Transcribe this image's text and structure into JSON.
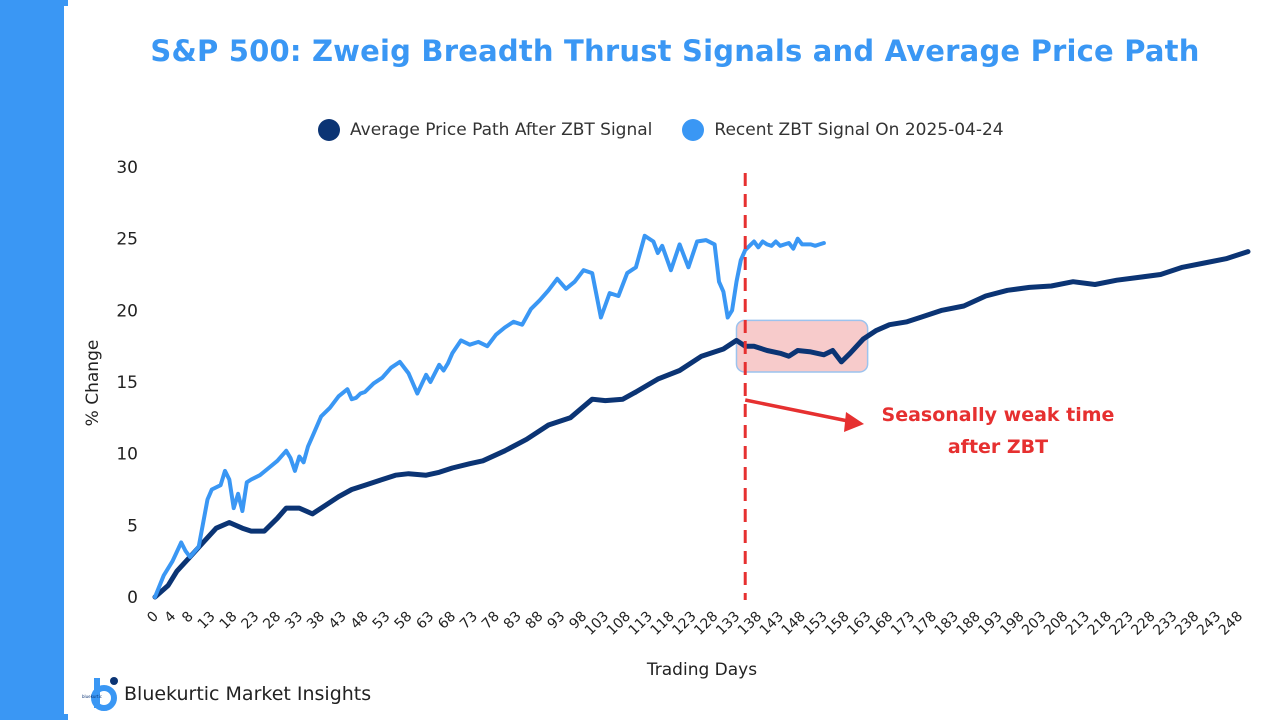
{
  "title": "S&P 500: Zweig Breadth Thrust Signals and Average Price Path",
  "brand": {
    "name": "Bluekurtic Market Insights",
    "mark_text": "bluekurtic"
  },
  "chart_data": {
    "type": "line",
    "title": "S&P 500: Zweig Breadth Thrust Signals and Average Price Path",
    "xlabel": "Trading Days",
    "ylabel": "% Change",
    "xlim": [
      0,
      250
    ],
    "ylim": [
      0,
      30
    ],
    "yticks": [
      0,
      5,
      10,
      15,
      20,
      25,
      30
    ],
    "xticks": [
      0,
      4,
      8,
      13,
      18,
      23,
      28,
      33,
      38,
      43,
      48,
      53,
      58,
      63,
      68,
      73,
      78,
      83,
      88,
      93,
      98,
      103,
      108,
      113,
      118,
      123,
      128,
      133,
      138,
      143,
      148,
      153,
      158,
      163,
      168,
      173,
      178,
      183,
      188,
      193,
      198,
      203,
      208,
      213,
      218,
      223,
      228,
      233,
      238,
      243,
      248
    ],
    "legend_position": "top-center",
    "grid": false,
    "series": [
      {
        "name": "Average Price Path After ZBT Signal",
        "color": "#0b3474",
        "x": [
          0,
          3,
          5,
          8,
          11,
          14,
          17,
          20,
          22,
          25,
          28,
          30,
          33,
          36,
          39,
          42,
          45,
          48,
          52,
          55,
          58,
          62,
          65,
          68,
          72,
          75,
          80,
          85,
          90,
          95,
          100,
          103,
          107,
          110,
          115,
          120,
          125,
          130,
          133,
          135,
          137,
          140,
          143,
          145,
          147,
          150,
          153,
          155,
          157,
          159,
          162,
          165,
          168,
          172,
          175,
          180,
          185,
          190,
          195,
          200,
          205,
          210,
          215,
          220,
          225,
          230,
          235,
          240,
          245,
          250
        ],
        "y": [
          0,
          0.8,
          1.8,
          2.8,
          3.8,
          4.8,
          5.2,
          4.8,
          4.6,
          4.6,
          5.5,
          6.2,
          6.2,
          5.8,
          6.4,
          7,
          7.5,
          7.8,
          8.2,
          8.5,
          8.6,
          8.5,
          8.7,
          9,
          9.3,
          9.5,
          10.2,
          11,
          12,
          12.5,
          13.8,
          13.7,
          13.8,
          14.3,
          15.2,
          15.8,
          16.8,
          17.3,
          17.9,
          17.5,
          17.5,
          17.2,
          17.0,
          16.8,
          17.2,
          17.1,
          16.9,
          17.2,
          16.4,
          17.0,
          18.0,
          18.6,
          19.0,
          19.2,
          19.5,
          20.0,
          20.3,
          21.0,
          21.4,
          21.6,
          21.7,
          22.0,
          21.8,
          22.1,
          22.3,
          22.5,
          23.0,
          23.3,
          23.6,
          24.1
        ]
      },
      {
        "name": "Recent ZBT Signal On 2025-04-24",
        "color": "#3a97f4",
        "x": [
          0,
          2,
          4,
          6,
          7,
          8,
          10,
          12,
          13,
          15,
          16,
          17,
          18,
          19,
          20,
          21,
          22,
          24,
          26,
          28,
          30,
          31,
          32,
          33,
          34,
          35,
          36,
          38,
          40,
          42,
          44,
          45,
          46,
          47,
          48,
          50,
          52,
          54,
          56,
          58,
          60,
          62,
          63,
          65,
          66,
          67,
          68,
          70,
          72,
          74,
          76,
          78,
          80,
          82,
          84,
          86,
          88,
          90,
          92,
          94,
          96,
          98,
          100,
          102,
          104,
          106,
          108,
          110,
          112,
          114,
          115,
          116,
          118,
          120,
          122,
          124,
          126,
          128,
          129,
          130,
          131,
          132,
          133,
          134,
          135,
          137,
          138,
          139,
          140,
          141,
          142,
          143,
          145,
          146,
          147,
          148,
          150,
          151,
          152,
          153
        ],
        "y": [
          0,
          1.5,
          2.5,
          3.8,
          3.2,
          2.8,
          3.5,
          6.8,
          7.5,
          7.8,
          8.8,
          8.2,
          6.2,
          7.2,
          6.0,
          8.0,
          8.2,
          8.5,
          9.0,
          9.5,
          10.2,
          9.7,
          8.8,
          9.8,
          9.4,
          10.5,
          11.2,
          12.6,
          13.2,
          14.0,
          14.5,
          13.8,
          13.9,
          14.2,
          14.3,
          14.9,
          15.3,
          16.0,
          16.4,
          15.6,
          14.2,
          15.5,
          15.0,
          16.2,
          15.8,
          16.3,
          17.0,
          17.9,
          17.6,
          17.8,
          17.5,
          18.3,
          18.8,
          19.2,
          19.0,
          20.1,
          20.7,
          21.4,
          22.2,
          21.5,
          22.0,
          22.8,
          22.6,
          19.5,
          21.2,
          21.0,
          22.6,
          23.0,
          25.2,
          24.8,
          24.0,
          24.5,
          22.8,
          24.6,
          23.0,
          24.8,
          24.9,
          24.6,
          22.0,
          21.3,
          19.5,
          20.0,
          22.0,
          23.5,
          24.2,
          24.8,
          24.4,
          24.8,
          24.6,
          24.5,
          24.8,
          24.5,
          24.7,
          24.3,
          25.0,
          24.6,
          24.6,
          24.5,
          24.6,
          24.7
        ]
      }
    ],
    "annotations": {
      "vline_x": 135,
      "vline_color": "#e63030",
      "highlight_box": {
        "x_start": 133,
        "x_end": 163,
        "y_low": 15.7,
        "y_high": 19.3,
        "color": "#f4b5b5"
      },
      "arrow_label_line1": "Seasonally weak time",
      "arrow_label_line2": "after ZBT",
      "arrow_color": "#e63030"
    }
  }
}
